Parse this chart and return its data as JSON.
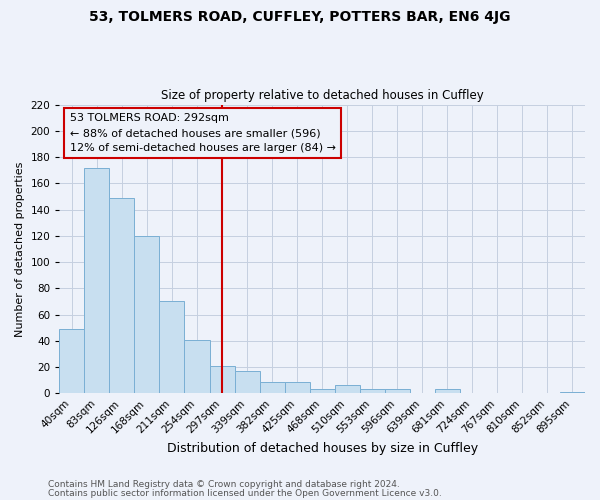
{
  "title": "53, TOLMERS ROAD, CUFFLEY, POTTERS BAR, EN6 4JG",
  "subtitle": "Size of property relative to detached houses in Cuffley",
  "xlabel": "Distribution of detached houses by size in Cuffley",
  "ylabel": "Number of detached properties",
  "bar_labels": [
    "40sqm",
    "83sqm",
    "126sqm",
    "168sqm",
    "211sqm",
    "254sqm",
    "297sqm",
    "339sqm",
    "382sqm",
    "425sqm",
    "468sqm",
    "510sqm",
    "553sqm",
    "596sqm",
    "639sqm",
    "681sqm",
    "724sqm",
    "767sqm",
    "810sqm",
    "852sqm",
    "895sqm"
  ],
  "bar_values": [
    49,
    172,
    149,
    120,
    70,
    41,
    21,
    17,
    9,
    9,
    3,
    6,
    3,
    3,
    0,
    3,
    0,
    0,
    0,
    0,
    1
  ],
  "bar_color": "#c8dff0",
  "bar_edge_color": "#7aafd4",
  "vline_x_index": 6,
  "vline_color": "#cc0000",
  "annotation_title": "53 TOLMERS ROAD: 292sqm",
  "annotation_line1": "← 88% of detached houses are smaller (596)",
  "annotation_line2": "12% of semi-detached houses are larger (84) →",
  "annotation_box_edge": "#cc0000",
  "ylim": [
    0,
    220
  ],
  "yticks": [
    0,
    20,
    40,
    60,
    80,
    100,
    120,
    140,
    160,
    180,
    200,
    220
  ],
  "footnote1": "Contains HM Land Registry data © Crown copyright and database right 2024.",
  "footnote2": "Contains public sector information licensed under the Open Government Licence v3.0.",
  "bg_color": "#eef2fa",
  "grid_color": "#c5cfe0",
  "title_fontsize": 10,
  "subtitle_fontsize": 8.5,
  "xlabel_fontsize": 9,
  "ylabel_fontsize": 8,
  "tick_fontsize": 7.5,
  "footnote_fontsize": 6.5
}
